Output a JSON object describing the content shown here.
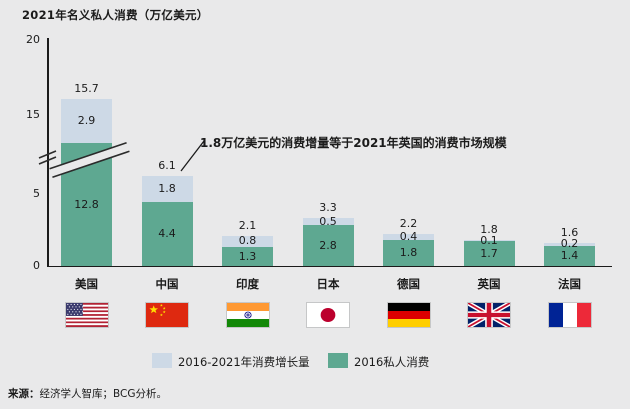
{
  "title": "2021年名义私人消费（万亿美元）",
  "chart_data": {
    "type": "bar",
    "stacked": true,
    "title": "2021年名义私人消费（万亿美元）",
    "categories": [
      "美国",
      "中国",
      "印度",
      "日本",
      "德国",
      "英国",
      "法国"
    ],
    "series": [
      {
        "name": "2016-2021年消费增长量",
        "color": "#cdd9e6",
        "values": [
          2.9,
          1.8,
          0.8,
          0.5,
          0.4,
          0.1,
          0.2
        ]
      },
      {
        "name": "2016私人消费",
        "color": "#5ea891",
        "values": [
          12.8,
          4.4,
          1.3,
          2.8,
          1.8,
          1.7,
          1.4
        ]
      }
    ],
    "totals": [
      15.7,
      6.1,
      2.1,
      3.3,
      2.2,
      1.8,
      1.6
    ],
    "y_ticks": [
      20,
      15,
      5,
      0
    ],
    "ylim": [
      0,
      20
    ],
    "y_axis_break": true,
    "grid": false,
    "legend_position": "bottom",
    "annotation": "1.8万亿美元的消费增量等于2021年英国的消费市场规模"
  },
  "flags": [
    {
      "country": "美国",
      "code": "us"
    },
    {
      "country": "中国",
      "code": "cn"
    },
    {
      "country": "印度",
      "code": "in"
    },
    {
      "country": "日本",
      "code": "jp"
    },
    {
      "country": "德国",
      "code": "de"
    },
    {
      "country": "英国",
      "code": "gb"
    },
    {
      "country": "法国",
      "code": "fr"
    }
  ],
  "legend": [
    {
      "label": "2016-2021年消费增长量",
      "color": "#cdd9e6"
    },
    {
      "label": "2016私人消费",
      "color": "#5ea891"
    }
  ],
  "source": {
    "prefix": "来源：",
    "text": "经济学人智库；BCG分析。"
  }
}
